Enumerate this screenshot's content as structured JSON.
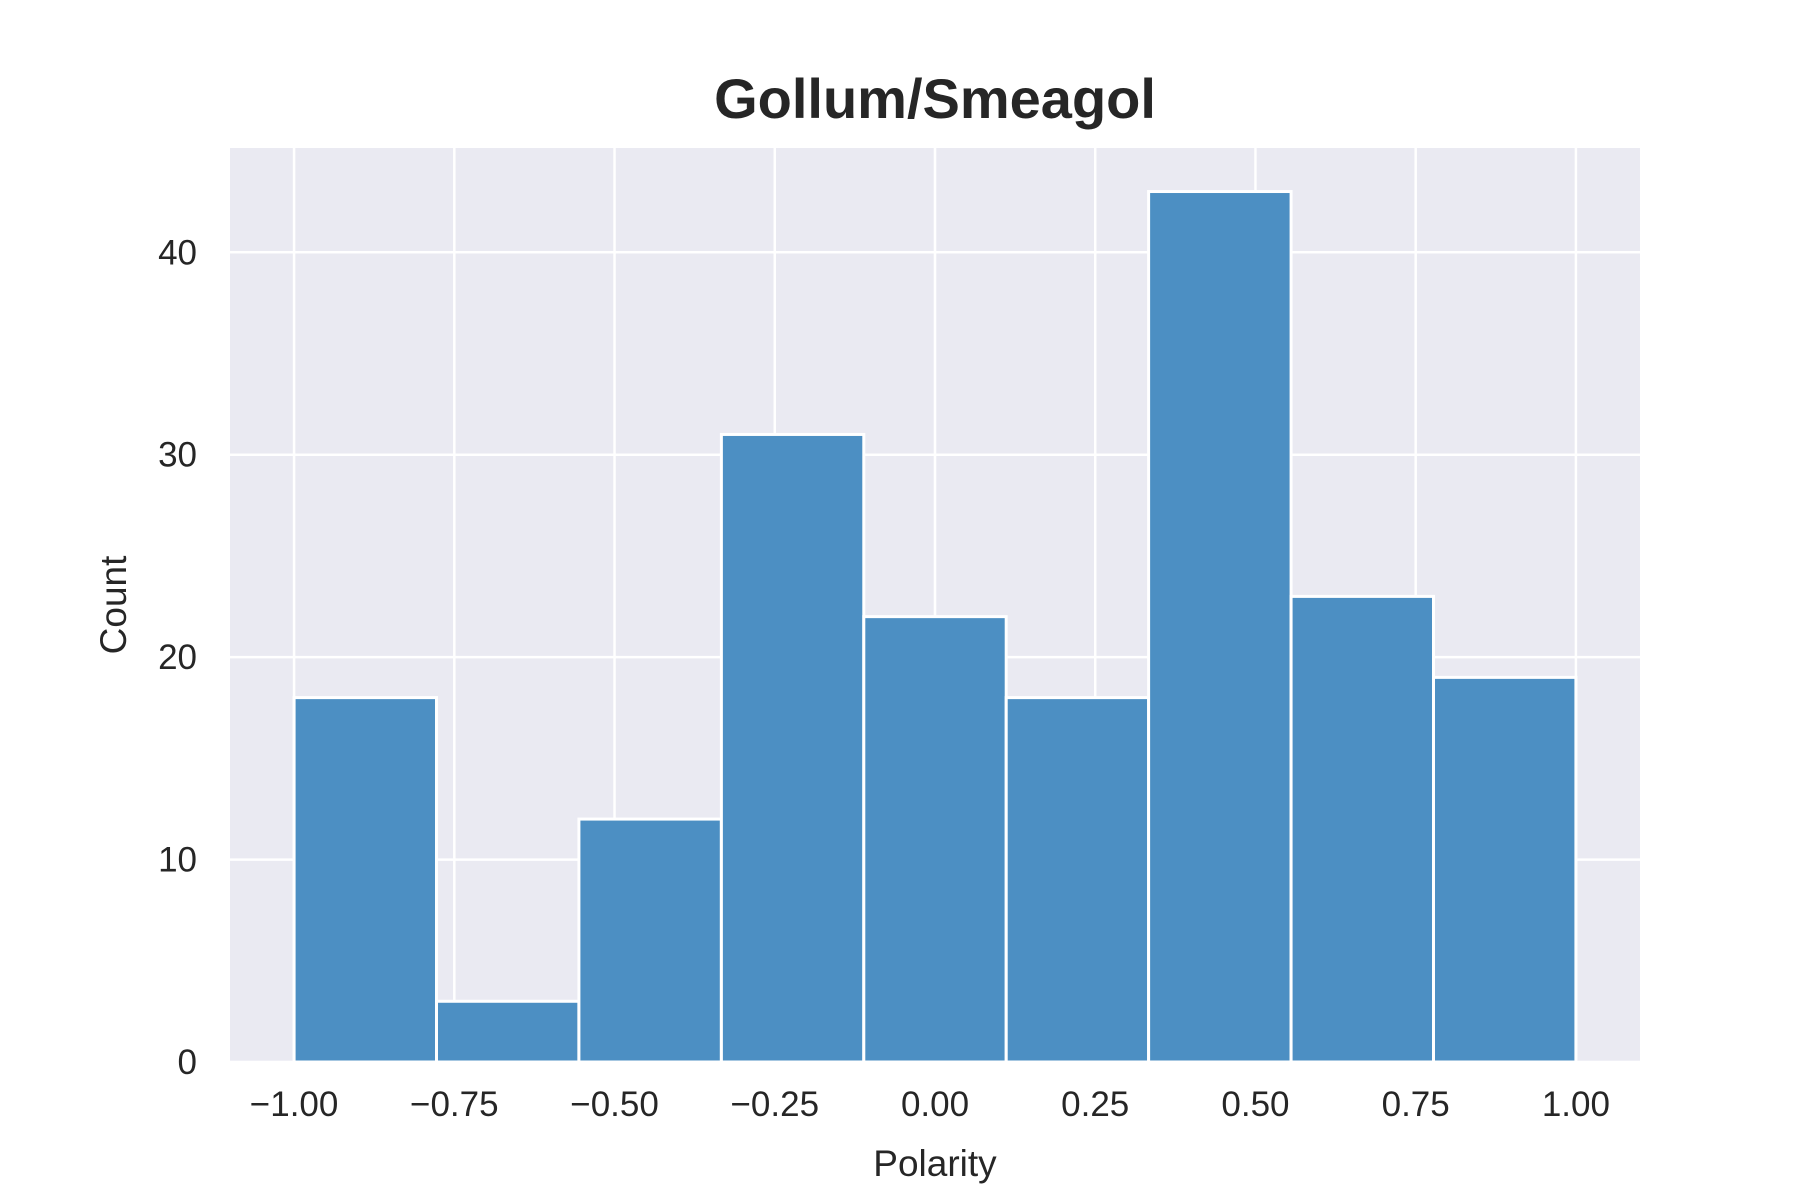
{
  "chart_data": {
    "type": "bar",
    "title": "Gollum/Smeagol",
    "xlabel": "Polarity",
    "ylabel": "Count",
    "bins": [
      [
        -1.0,
        -0.7778
      ],
      [
        -0.7778,
        -0.5556
      ],
      [
        -0.5556,
        -0.3333
      ],
      [
        -0.3333,
        -0.1111
      ],
      [
        -0.1111,
        0.1111
      ],
      [
        0.1111,
        0.3333
      ],
      [
        0.3333,
        0.5556
      ],
      [
        0.5556,
        0.7778
      ],
      [
        0.7778,
        1.0
      ]
    ],
    "values": [
      18,
      3,
      12,
      31,
      22,
      18,
      43,
      23,
      19
    ],
    "xlim": [
      -1.1,
      1.1
    ],
    "ylim": [
      0,
      45.15
    ],
    "xticks": [
      -1.0,
      -0.75,
      -0.5,
      -0.25,
      0.0,
      0.25,
      0.5,
      0.75,
      1.0
    ],
    "xtick_labels": [
      "−1.00",
      "−0.75",
      "−0.50",
      "−0.25",
      "0.00",
      "0.25",
      "0.50",
      "0.75",
      "1.00"
    ],
    "yticks": [
      0,
      10,
      20,
      30,
      40
    ],
    "ytick_labels": [
      "0",
      "10",
      "20",
      "30",
      "40"
    ],
    "grid": true,
    "colors": {
      "bar": "#4c8fc3",
      "plot_background": "#eaeaf2",
      "grid": "#ffffff",
      "text": "#262626"
    }
  }
}
